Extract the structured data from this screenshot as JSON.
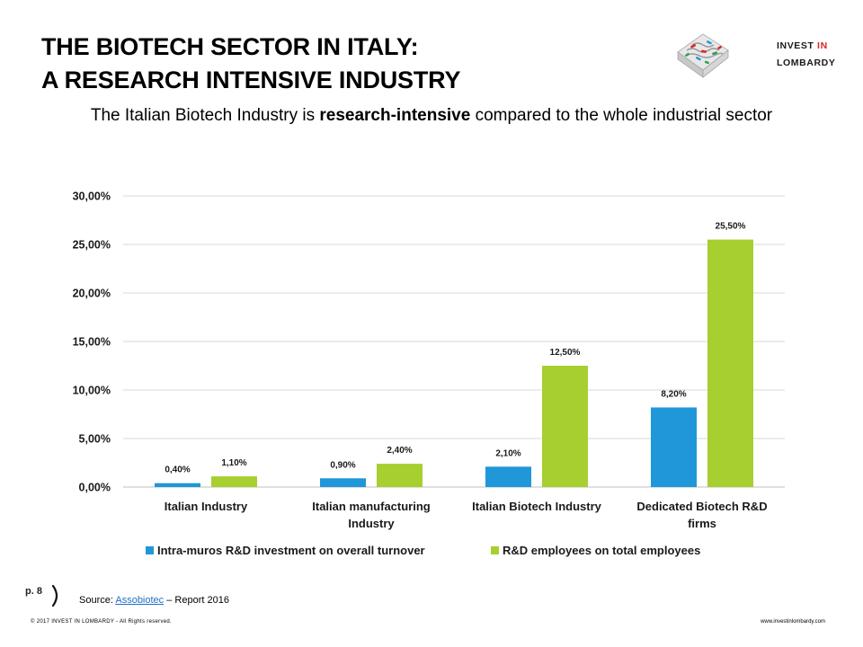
{
  "header": {
    "title_line1": "THE BIOTECH SECTOR IN ITALY:",
    "title_line2": "A RESEARCH INTENSIVE INDUSTRY",
    "subtitle_before": "The Italian Biotech Industry is ",
    "subtitle_bold": "research-intensive",
    "subtitle_after": " compared to the whole industrial sector"
  },
  "logo": {
    "line1_prefix": "INVEST ",
    "line1_accent": "IN",
    "line2": "LOMBARDY",
    "accent_color": "#d7261e"
  },
  "colors": {
    "series1": "#1f97d9",
    "series2": "#a6cf2f",
    "grid": "#d9d9d9",
    "axis": "#bfbfbf"
  },
  "chart_data": {
    "type": "bar",
    "categories": [
      "Italian Industry",
      "Italian manufacturing Industry",
      "Italian Biotech Industry",
      "Dedicated Biotech R&D firms"
    ],
    "category_lines": [
      [
        "Italian Industry"
      ],
      [
        "Italian manufacturing",
        "Industry"
      ],
      [
        "Italian Biotech Industry"
      ],
      [
        "Dedicated Biotech R&D",
        "firms"
      ]
    ],
    "series": [
      {
        "name": "Intra-muros R&D investment on overall turnover",
        "values": [
          0.4,
          0.9,
          2.1,
          8.2
        ],
        "labels": [
          "0,40%",
          "0,90%",
          "2,10%",
          "8,20%"
        ]
      },
      {
        "name": "R&D employees on total employees",
        "values": [
          1.1,
          2.4,
          12.5,
          25.5
        ],
        "labels": [
          "1,10%",
          "2,40%",
          "12,50%",
          "25,50%"
        ]
      }
    ],
    "ylim": [
      0,
      30
    ],
    "yticks": [
      0,
      5,
      10,
      15,
      20,
      25,
      30
    ],
    "ytick_labels": [
      "0,00%",
      "5,00%",
      "10,00%",
      "15,00%",
      "20,00%",
      "25,00%",
      "30,00%"
    ],
    "grid": true,
    "legend_position": "bottom"
  },
  "footer": {
    "page": "p. 8",
    "source_prefix": "Source: ",
    "source_link": "Assobiotec",
    "source_suffix": " – Report 2016",
    "copyright": "© 2017 INVEST IN LOMBARDY -  All Rights reserved.",
    "url": "www.investinlombardy.com"
  }
}
